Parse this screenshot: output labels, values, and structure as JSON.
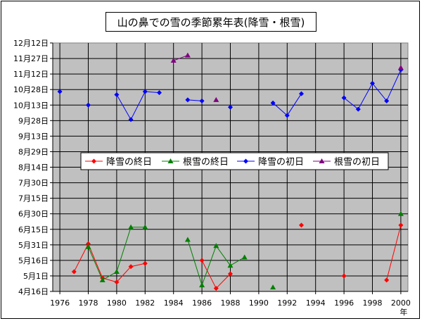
{
  "chart_data": {
    "type": "line",
    "title": "山の鼻での雪の季節累年表(降雪・根雪)",
    "x_unit_label": "年",
    "x_ticks": [
      "1976",
      "1978",
      "1980",
      "1982",
      "1984",
      "1986",
      "1988",
      "1990",
      "1992",
      "1994",
      "1996",
      "1998",
      "2000"
    ],
    "xlim": [
      1975.5,
      2000.5
    ],
    "y_ticks": [
      "4月16日",
      "5月1日",
      "5月16日",
      "5月31日",
      "6月15日",
      "6月30日",
      "7月15日",
      "7月30日",
      "8月14日",
      "8月29日",
      "9月13日",
      "9月28日",
      "10月13日",
      "10月28日",
      "11月12日",
      "11月27日",
      "12月12日"
    ],
    "ylim": [
      0,
      240
    ],
    "grid": true,
    "legend_position": "center",
    "series": [
      {
        "name": "降雪の終日",
        "color": "#ff0000",
        "marker": "diamond",
        "points": [
          [
            1977,
            19
          ],
          [
            1978,
            46
          ],
          [
            1979,
            13
          ],
          [
            1980,
            9
          ],
          [
            1981,
            24
          ],
          [
            1982,
            27
          ],
          null,
          [
            1986,
            30
          ],
          [
            1987,
            3
          ],
          [
            1988,
            17
          ],
          null,
          [
            1993,
            64
          ],
          null,
          [
            1996,
            15
          ],
          null,
          [
            1999,
            11
          ],
          [
            2000,
            64
          ]
        ]
      },
      {
        "name": "根雪の終日",
        "color": "#008000",
        "marker": "triangle",
        "points": [
          [
            1978,
            43
          ],
          [
            1979,
            11
          ],
          [
            1980,
            19
          ],
          [
            1981,
            62
          ],
          [
            1982,
            62
          ],
          null,
          [
            1985,
            50
          ],
          [
            1986,
            6
          ],
          [
            1987,
            44
          ],
          [
            1988,
            25
          ],
          [
            1989,
            33
          ],
          null,
          [
            1991,
            4
          ],
          null,
          [
            2000,
            75
          ]
        ]
      },
      {
        "name": "降雪の初日",
        "color": "#0000ff",
        "marker": "diamond",
        "points": [
          [
            1976,
            193
          ],
          null,
          [
            1978,
            180
          ],
          null,
          [
            1980,
            190
          ],
          [
            1981,
            166
          ],
          [
            1982,
            193
          ],
          [
            1983,
            192
          ],
          null,
          [
            1985,
            185
          ],
          [
            1986,
            184
          ],
          null,
          [
            1988,
            178
          ],
          null,
          [
            1991,
            182
          ],
          [
            1992,
            170
          ],
          [
            1993,
            191
          ],
          null,
          [
            1996,
            187
          ],
          [
            1997,
            176
          ],
          [
            1998,
            201
          ],
          [
            1999,
            184
          ],
          [
            2000,
            214
          ]
        ]
      },
      {
        "name": "根雪の初日",
        "color": "#800080",
        "marker": "triangle",
        "points": [
          [
            1984,
            223
          ],
          [
            1985,
            228
          ],
          null,
          [
            1987,
            185
          ],
          null,
          [
            2000,
            216
          ]
        ]
      }
    ]
  }
}
